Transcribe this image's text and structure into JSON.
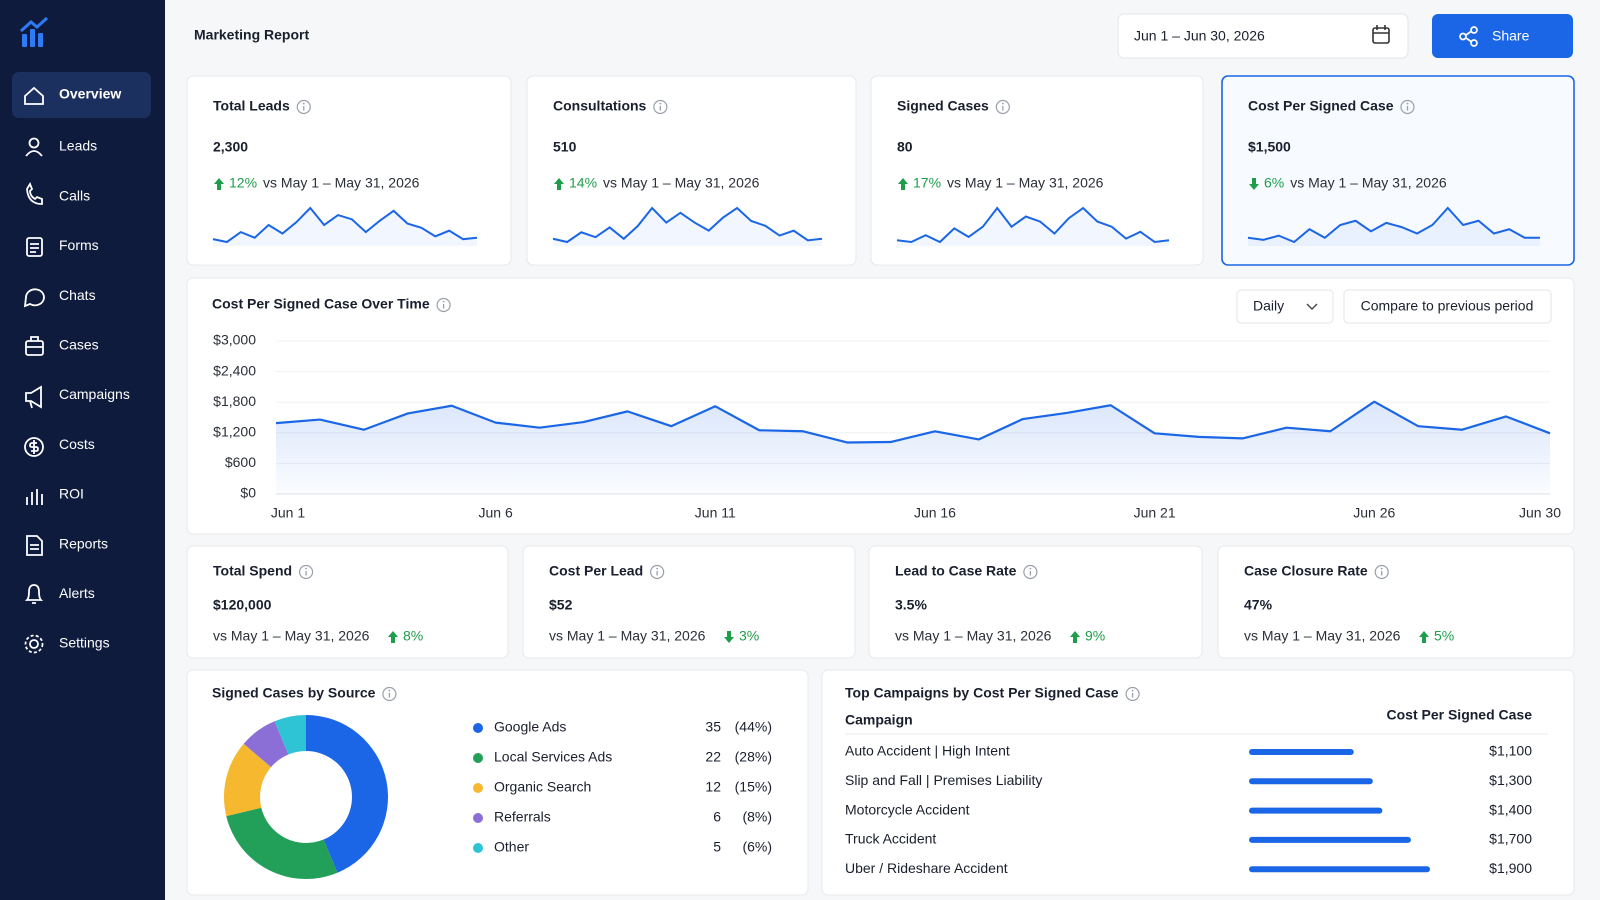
{
  "sidebar": {
    "nav": [
      "Overview",
      "Leads",
      "Calls",
      "Forms",
      "Chats",
      "Cases",
      "Campaigns",
      "Costs",
      "ROI",
      "Reports",
      "Alerts",
      "Settings"
    ],
    "active": 0
  },
  "header": {
    "title": "Marketing Report",
    "date_range": "Jun 1 – Jun 30, 2026",
    "share": "Share"
  },
  "selected_kpi": 3,
  "kpis": [
    {
      "title": "Total Leads",
      "value": "2,300",
      "change": "12%",
      "direction": "up",
      "comparison": "vs May 1 – May 31, 2026",
      "sparkline": [
        40,
        38,
        45,
        41,
        50,
        44,
        52,
        62,
        50,
        57,
        54,
        45,
        53,
        60,
        51,
        48,
        42,
        46,
        40,
        41
      ]
    },
    {
      "title": "Consultations",
      "value": "510",
      "change": "14%",
      "direction": "up",
      "comparison": "vs May 1 – May 31, 2026",
      "sparkline": [
        42,
        40,
        46,
        43,
        49,
        42,
        50,
        61,
        52,
        58,
        52,
        47,
        55,
        61,
        53,
        50,
        44,
        47,
        41,
        42
      ]
    },
    {
      "title": "Signed Cases",
      "value": "80",
      "change": "17%",
      "direction": "up",
      "comparison": "vs May 1 – May 31, 2026",
      "sparkline": [
        41,
        40,
        44,
        40,
        48,
        43,
        49,
        60,
        49,
        55,
        52,
        45,
        54,
        60,
        52,
        49,
        42,
        46,
        40,
        41
      ]
    },
    {
      "title": "Cost Per Signed Case",
      "value": "$1,500",
      "change": "6%",
      "direction": "down",
      "comparison": "vs May 1 – May 31, 2026",
      "sparkline": [
        42,
        41,
        43,
        40,
        46,
        42,
        48,
        50,
        45,
        49,
        47,
        44,
        48,
        56,
        48,
        50,
        44,
        46,
        42,
        42
      ]
    }
  ],
  "metrics": [
    {
      "title": "Total Spend",
      "value": "$120,000",
      "comparison": "vs May 1 – May 31, 2026",
      "change": "8%",
      "direction": "up"
    },
    {
      "title": "Cost Per Lead",
      "value": "$52",
      "comparison": "vs May 1 – May 31, 2026",
      "change": "3%",
      "direction": "down"
    },
    {
      "title": "Lead to Case Rate",
      "value": "3.5%",
      "comparison": "vs May 1 – May 31, 2026",
      "change": "9%",
      "direction": "up"
    },
    {
      "title": "Case Closure Rate",
      "value": "47%",
      "comparison": "vs May 1 – May 31, 2026",
      "change": "5%",
      "direction": "up"
    }
  ],
  "chart_data": [
    {
      "type": "line",
      "title": "Cost Per Signed Case Over Time",
      "controls": [
        "Daily",
        "Compare to previous period"
      ],
      "categories": [
        "Jun 1",
        null,
        null,
        null,
        null,
        "Jun 6",
        null,
        null,
        null,
        null,
        "Jun 11",
        null,
        null,
        null,
        null,
        "Jun 16",
        null,
        null,
        null,
        null,
        "Jun 21",
        null,
        null,
        null,
        null,
        "Jun 26",
        null,
        null,
        null,
        "Jun 30"
      ],
      "values": [
        1390,
        1460,
        1260,
        1580,
        1730,
        1400,
        1300,
        1410,
        1620,
        1330,
        1720,
        1250,
        1230,
        1010,
        1020,
        1230,
        1070,
        1470,
        1590,
        1740,
        1190,
        1120,
        1090,
        1300,
        1230,
        1810,
        1330,
        1260,
        1520,
        1190
      ],
      "color": "#1a66e6",
      "ylim": [
        0,
        3000
      ],
      "yticks": [
        {
          "value": 0,
          "label": "$0"
        },
        {
          "value": 600,
          "label": "$600"
        },
        {
          "value": 1200,
          "label": "$1,200"
        },
        {
          "value": 1800,
          "label": "$1,800"
        },
        {
          "value": 2400,
          "label": "$2,400"
        },
        {
          "value": 3000,
          "label": "$3,000"
        }
      ],
      "grid": true
    },
    {
      "type": "donut",
      "title": "Signed Cases by Source",
      "categories": [
        "Google Ads",
        "Local Services Ads",
        "Organic Search",
        "Referrals",
        "Other"
      ],
      "values": [
        35,
        22,
        12,
        6,
        5
      ],
      "percent_labels": [
        "(44%)",
        "(28%)",
        "(15%)",
        "(8%)",
        "(6%)"
      ],
      "colors": [
        "#1a66e6",
        "#22a05a",
        "#f5b82e",
        "#8b6fd6",
        "#2ec4d6"
      ]
    },
    {
      "type": "bar",
      "orientation": "horizontal",
      "title": "Top Campaigns by Cost Per Signed Case",
      "column_labels": [
        "Campaign",
        "Cost Per Signed Case"
      ],
      "categories": [
        "Auto Accident | High Intent",
        "Slip and Fall | Premises Liability",
        "Motorcycle Accident",
        "Truck Accident",
        "Uber / Rideshare Accident"
      ],
      "values": [
        1100,
        1300,
        1400,
        1700,
        1900
      ],
      "value_labels": [
        "$1,100",
        "$1,300",
        "$1,400",
        "$1,700",
        "$1,900"
      ],
      "color": "#1a66e6"
    }
  ]
}
